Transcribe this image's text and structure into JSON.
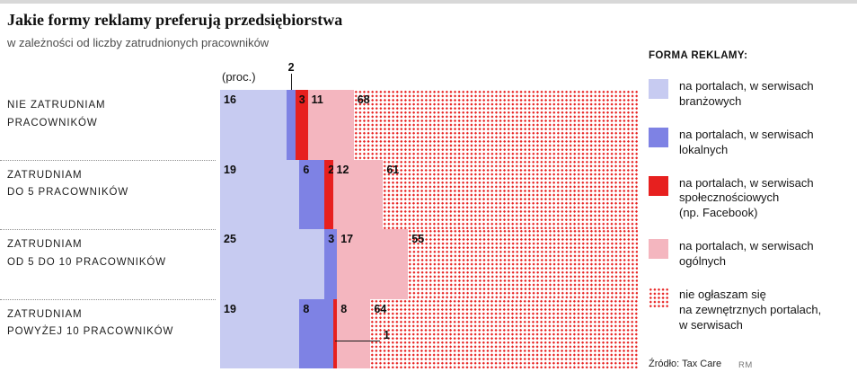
{
  "header": {
    "title": "Jakie formy reklamy preferują przedsiębiorstwa",
    "subtitle": "w zależności od liczby zatrudnionych pracowników"
  },
  "chart_data": {
    "type": "bar",
    "stacked": true,
    "orientation": "horizontal",
    "unit_label": "(proc.)",
    "value_unit": "percent",
    "xlim": [
      0,
      100
    ],
    "categories": [
      {
        "label": "NIE ZATRUDNIAM PRACOWNIKÓW",
        "lines": [
          "NIE ZATRUDNIAM",
          "PRACOWNIKÓW"
        ]
      },
      {
        "label": "ZATRUDNIAM DO 5 PRACOWNIKÓW",
        "lines": [
          "ZATRUDNIAM",
          "DO 5 PRACOWNIKÓW"
        ]
      },
      {
        "label": "ZATRUDNIAM OD 5 DO 10 PRACOWNIKÓW",
        "lines": [
          "ZATRUDNIAM",
          "OD 5 DO 10 PRACOWNIKÓW"
        ]
      },
      {
        "label": "ZATRUDNIAM POWYŻEJ 10 PRACOWNIKÓW",
        "lines": [
          "ZATRUDNIAM",
          "POWYŻEJ 10 PRACOWNIKÓW"
        ]
      }
    ],
    "series": [
      {
        "name": "na portalach, w serwisach branżowych",
        "color": "#c7cbf1",
        "pattern": "solid",
        "values": [
          16,
          19,
          25,
          19
        ]
      },
      {
        "name": "na portalach, w serwisach lokalnych",
        "color": "#7e82e4",
        "pattern": "solid",
        "values": [
          2,
          6,
          3,
          8
        ]
      },
      {
        "name": "na portalach, w serwisach społecznościowych (np. Facebook)",
        "color": "#e7201f",
        "pattern": "solid",
        "values": [
          3,
          2,
          0,
          1
        ]
      },
      {
        "name": "na portalach, w serwisach ogólnych",
        "color": "#f4b6bf",
        "pattern": "solid",
        "values": [
          11,
          12,
          17,
          8
        ]
      },
      {
        "name": "nie ogłaszam się na zewnętrznych portalach, w serwisach",
        "color": "#e7201f",
        "pattern": "dots",
        "values": [
          68,
          61,
          55,
          64
        ]
      }
    ],
    "annotations": [
      {
        "row": 0,
        "series": 1,
        "label": "2",
        "type": "callout-above"
      },
      {
        "row": 3,
        "series": 2,
        "label": "1",
        "type": "callout-right"
      }
    ]
  },
  "legend": {
    "title": "FORMA REKLAMY:",
    "items": [
      {
        "series": 0,
        "lines": [
          "na portalach, w serwisach",
          "branżowych"
        ]
      },
      {
        "series": 1,
        "lines": [
          "na portalach, w serwisach",
          "lokalnych"
        ]
      },
      {
        "series": 2,
        "lines": [
          "na portalach, w serwisach",
          "społecznościowych",
          "(np. Facebook)"
        ]
      },
      {
        "series": 3,
        "lines": [
          "na portalach, w serwisach",
          "ogólnych"
        ]
      },
      {
        "series": 4,
        "lines": [
          "nie ogłaszam się",
          "na zewnętrznych portalach,",
          "w serwisach"
        ]
      }
    ]
  },
  "footer": {
    "source": "Źródło: Tax Care",
    "credit": "RM"
  }
}
